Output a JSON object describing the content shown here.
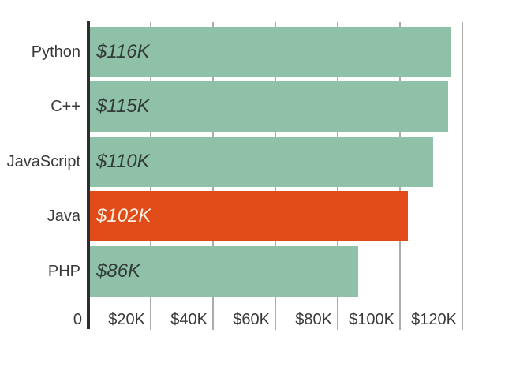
{
  "chart_data": {
    "type": "bar",
    "orientation": "horizontal",
    "title": "",
    "xlabel": "",
    "ylabel": "",
    "categories": [
      "Python",
      "C++",
      "JavaScript",
      "Java",
      "PHP"
    ],
    "values": [
      116,
      115,
      110,
      102,
      86
    ],
    "value_labels": [
      "$116K",
      "$115K",
      "$110K",
      "$102K",
      "$86K"
    ],
    "value_unit": "K USD",
    "highlight_index": 3,
    "x_ticks": [
      {
        "value": 0,
        "label": "0"
      },
      {
        "value": 20,
        "label": "$20K"
      },
      {
        "value": 40,
        "label": "$40K"
      },
      {
        "value": 60,
        "label": "$60K"
      },
      {
        "value": 80,
        "label": "$80K"
      },
      {
        "value": 100,
        "label": "$100K"
      },
      {
        "value": 120,
        "label": "$120K"
      }
    ],
    "xlim": [
      0,
      133
    ],
    "grid": true,
    "legend": false,
    "colors": {
      "bar_default": "#8FC0A8",
      "bar_highlight": "#E04B17",
      "value_label_dark": "#333B38",
      "value_label_light": "#F9EFE2",
      "category_text": "#3A3A3A",
      "tick_text": "#3A3A3A",
      "axis_line": "#2D2D2D",
      "gridline": "#ACACAC",
      "background": "#FFFFFF"
    }
  }
}
